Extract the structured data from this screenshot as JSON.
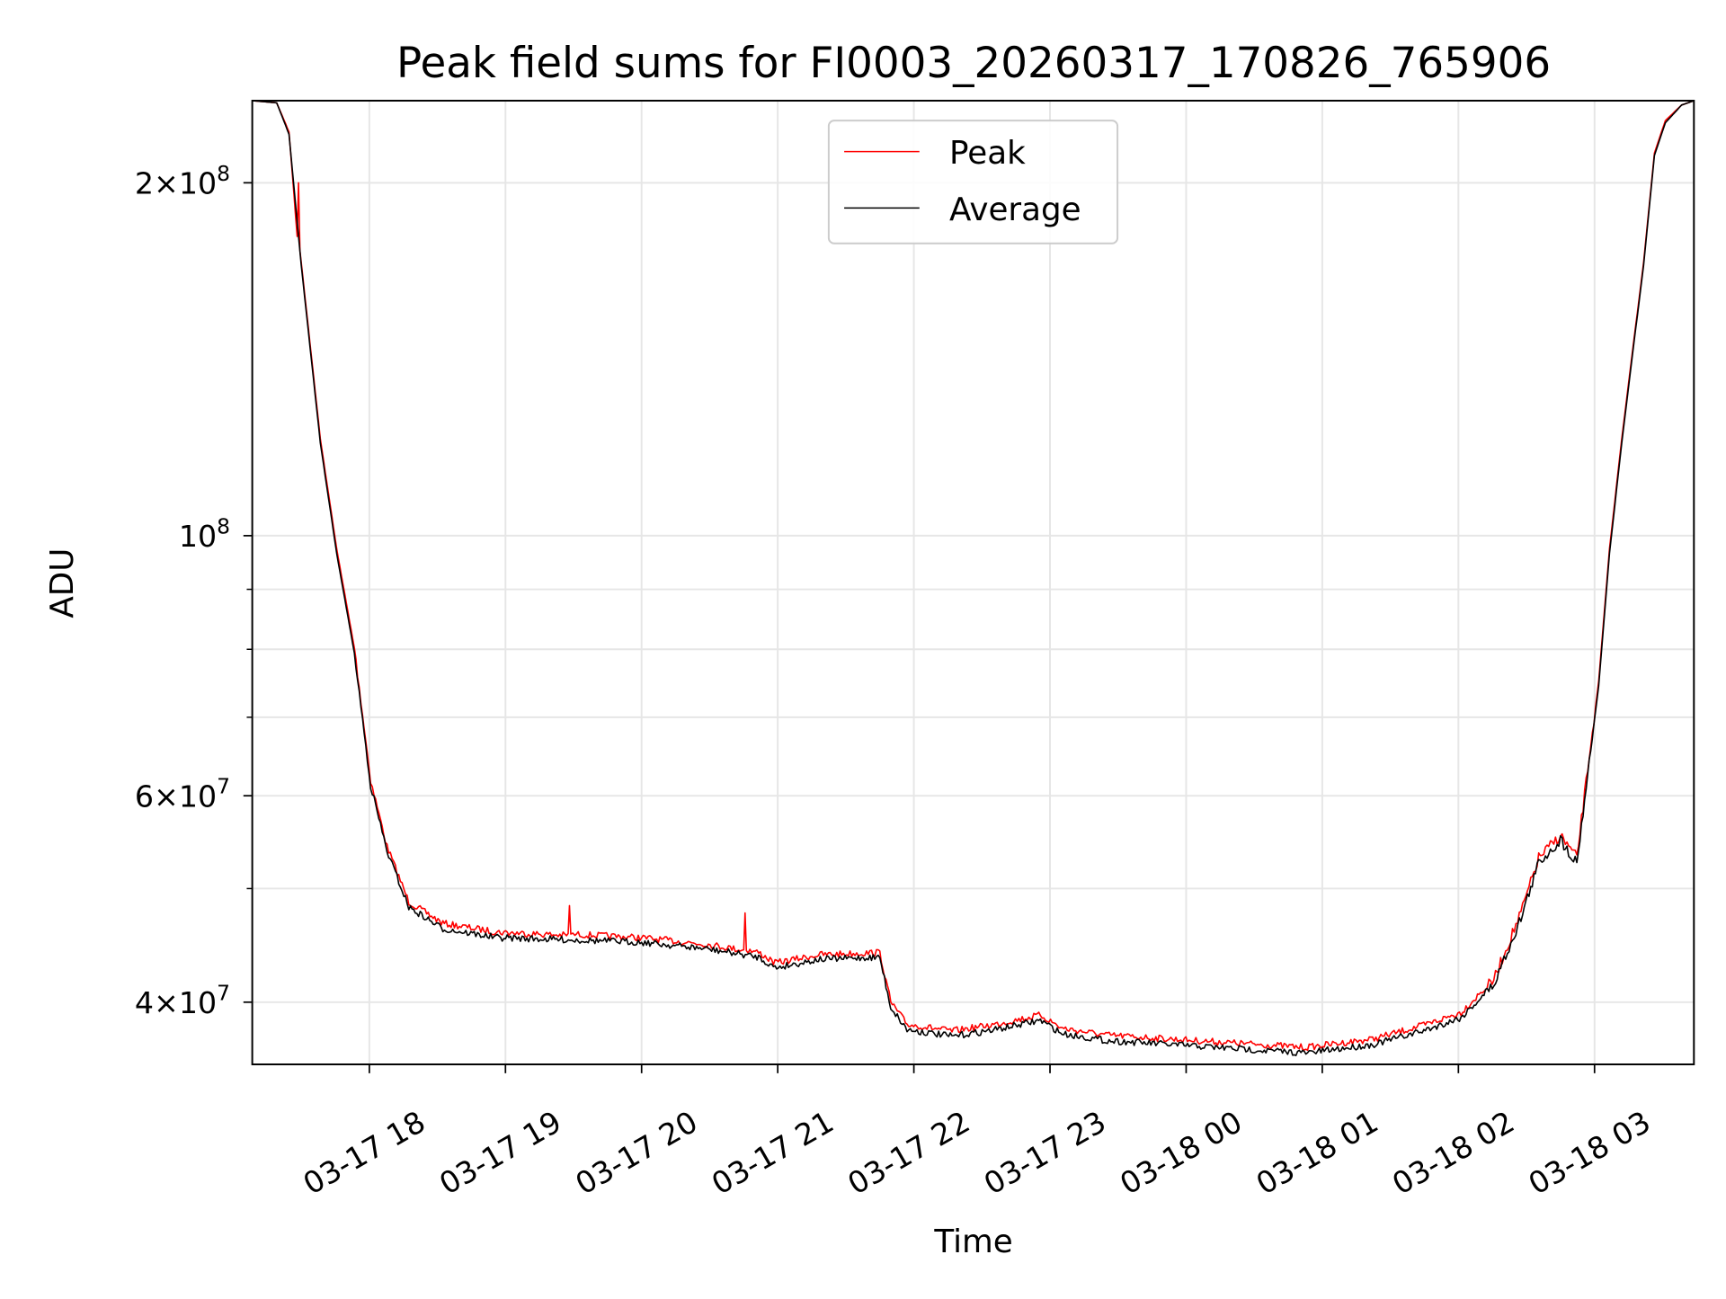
{
  "chart_data": {
    "type": "line",
    "title": "Peak field sums for FI0003_20260317_170826_765906",
    "xlabel": "Time",
    "ylabel": "ADU",
    "x_units": "hours since 2026-03-17 00:00",
    "xlim": [
      17.14,
      27.73
    ],
    "ylim": [
      35400000,
      235000000
    ],
    "yscale": "log",
    "grid": true,
    "legend_position": "top-center",
    "x_ticks": [
      {
        "value": 18,
        "label": "03-17 18"
      },
      {
        "value": 19,
        "label": "03-17 19"
      },
      {
        "value": 20,
        "label": "03-17 20"
      },
      {
        "value": 21,
        "label": "03-17 21"
      },
      {
        "value": 22,
        "label": "03-17 22"
      },
      {
        "value": 23,
        "label": "03-17 23"
      },
      {
        "value": 24,
        "label": "03-18 00"
      },
      {
        "value": 25,
        "label": "03-18 01"
      },
      {
        "value": 26,
        "label": "03-18 02"
      },
      {
        "value": 27,
        "label": "03-18 03"
      }
    ],
    "y_ticks": [
      {
        "value": 200000000,
        "base": "2×10",
        "exp": "8"
      },
      {
        "value": 100000000,
        "base": "10",
        "exp": "8"
      },
      {
        "value": 60000000,
        "base": "6×10",
        "exp": "7"
      },
      {
        "value": 40000000,
        "base": "4×10",
        "exp": "7"
      }
    ],
    "y_minor_ticks": [
      50000000,
      70000000,
      80000000,
      90000000
    ],
    "series": [
      {
        "name": "Peak",
        "color": "#ff0000",
        "x": [
          17.14,
          17.32,
          17.41,
          17.47,
          17.48,
          17.49,
          17.5,
          17.64,
          17.76,
          17.89,
          18.01,
          18.13,
          18.29,
          18.54,
          18.94,
          19.46,
          19.47,
          19.48,
          19.51,
          20.0,
          20.49,
          20.75,
          20.76,
          20.77,
          20.86,
          20.98,
          21.3,
          21.75,
          21.83,
          21.95,
          22.28,
          22.6,
          22.93,
          23.09,
          23.41,
          23.9,
          24.39,
          24.88,
          25.37,
          25.77,
          26.02,
          26.26,
          26.46,
          26.59,
          26.75,
          26.87,
          26.95,
          27.03,
          27.11,
          27.2,
          27.28,
          27.36,
          27.44,
          27.52,
          27.64,
          27.73
        ],
        "values": [
          235000000,
          234000000,
          221000000,
          180000000,
          200000000,
          175000000,
          171000000,
          121000000,
          97500000,
          80200000,
          61800000,
          54300000,
          48700000,
          46700000,
          45900000,
          45600000,
          48500000,
          45600000,
          45700000,
          45400000,
          44800000,
          44300000,
          47900000,
          44300000,
          44100000,
          43200000,
          43900000,
          44100000,
          40000000,
          38300000,
          37800000,
          38300000,
          39000000,
          38000000,
          37500000,
          37200000,
          36900000,
          36600000,
          37200000,
          38300000,
          39200000,
          41800000,
          47700000,
          53100000,
          55500000,
          53100000,
          63200000,
          75100000,
          97500000,
          121000000,
          144000000,
          171000000,
          212000000,
          226000000,
          233000000,
          235000000
        ]
      },
      {
        "name": "Average",
        "color": "#000000",
        "x": [
          17.14,
          17.32,
          17.41,
          17.5,
          17.64,
          17.76,
          17.89,
          18.01,
          18.13,
          18.29,
          18.54,
          18.94,
          19.51,
          20.0,
          20.49,
          20.86,
          20.98,
          21.3,
          21.75,
          21.83,
          21.95,
          22.28,
          22.6,
          22.93,
          23.09,
          23.41,
          23.9,
          24.39,
          24.88,
          25.37,
          25.77,
          26.02,
          26.26,
          26.46,
          26.59,
          26.75,
          26.87,
          26.95,
          27.03,
          27.11,
          27.2,
          27.28,
          27.36,
          27.44,
          27.52,
          27.64,
          27.73
        ],
        "values": [
          235000000,
          234000000,
          220000000,
          170000000,
          120000000,
          96600000,
          79400000,
          61200000,
          53800000,
          48200000,
          46200000,
          45400000,
          45200000,
          45000000,
          44400000,
          43700000,
          42800000,
          43500000,
          43700000,
          39600000,
          37900000,
          37400000,
          37900000,
          38600000,
          37600000,
          37100000,
          36800000,
          36500000,
          36200000,
          36800000,
          37900000,
          38800000,
          41400000,
          47200000,
          52600000,
          55000000,
          52600000,
          62600000,
          74400000,
          96600000,
          120000000,
          143000000,
          170000000,
          211000000,
          225000000,
          233000000,
          235000000
        ]
      }
    ]
  }
}
